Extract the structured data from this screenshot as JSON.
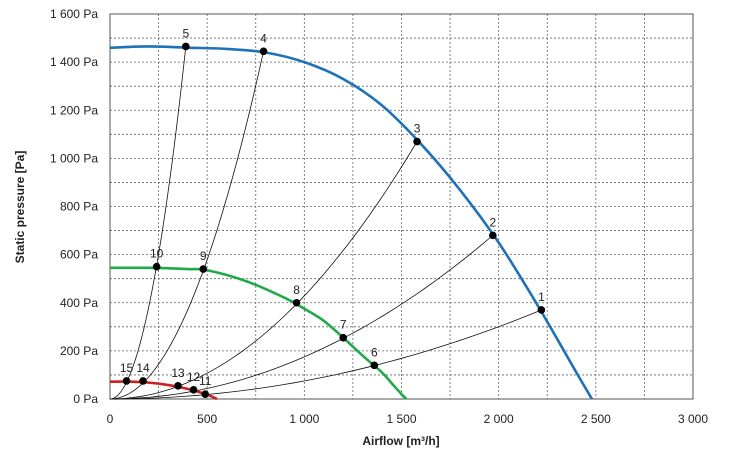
{
  "chart_data": {
    "type": "line",
    "title": "",
    "xlabel": "Airflow [m³/h]",
    "ylabel": "Static pressure [Pa]",
    "xlim": [
      0,
      3000
    ],
    "ylim": [
      0,
      1600
    ],
    "x_ticks": [
      0,
      500,
      1000,
      1500,
      2000,
      2500,
      3000
    ],
    "x_tick_labels": [
      "0",
      "500",
      "1 000",
      "1 500",
      "2 000",
      "2 500",
      "3 000"
    ],
    "y_ticks": [
      0,
      200,
      400,
      600,
      800,
      1000,
      1200,
      1400,
      1600
    ],
    "y_tick_labels": [
      "0 Pa",
      "200 Pa",
      "400 Pa",
      "600 Pa",
      "800 Pa",
      "1 000 Pa",
      "1 200 Pa",
      "1 400 Pa",
      "1 600 Pa"
    ],
    "grid": true,
    "fan_curves": [
      {
        "color": "#1f72b8",
        "points": [
          [
            0,
            1460
          ],
          [
            200,
            1465
          ],
          [
            400,
            1460
          ],
          [
            600,
            1455
          ],
          [
            800,
            1440
          ],
          [
            1000,
            1400
          ],
          [
            1200,
            1330
          ],
          [
            1400,
            1220
          ],
          [
            1600,
            1060
          ],
          [
            1800,
            870
          ],
          [
            2000,
            650
          ],
          [
            2200,
            390
          ],
          [
            2400,
            110
          ],
          [
            2480,
            0
          ]
        ]
      },
      {
        "color": "#1faa4a",
        "points": [
          [
            0,
            545
          ],
          [
            200,
            545
          ],
          [
            400,
            540
          ],
          [
            500,
            535
          ],
          [
            700,
            490
          ],
          [
            900,
            420
          ],
          [
            1000,
            375
          ],
          [
            1100,
            325
          ],
          [
            1200,
            255
          ],
          [
            1300,
            180
          ],
          [
            1400,
            110
          ],
          [
            1450,
            65
          ],
          [
            1500,
            20
          ],
          [
            1525,
            0
          ]
        ]
      },
      {
        "color": "#cc1f1f",
        "points": [
          [
            0,
            72
          ],
          [
            100,
            72
          ],
          [
            200,
            68
          ],
          [
            300,
            58
          ],
          [
            400,
            42
          ],
          [
            500,
            18
          ],
          [
            550,
            0
          ]
        ]
      }
    ],
    "operating_points": [
      {
        "label": "1",
        "x": 2220,
        "y": 370
      },
      {
        "label": "2",
        "x": 1970,
        "y": 680
      },
      {
        "label": "3",
        "x": 1580,
        "y": 1070
      },
      {
        "label": "4",
        "x": 790,
        "y": 1445
      },
      {
        "label": "5",
        "x": 390,
        "y": 1465
      },
      {
        "label": "6",
        "x": 1360,
        "y": 140
      },
      {
        "label": "7",
        "x": 1200,
        "y": 255
      },
      {
        "label": "8",
        "x": 960,
        "y": 400
      },
      {
        "label": "9",
        "x": 480,
        "y": 540
      },
      {
        "label": "10",
        "x": 240,
        "y": 550
      },
      {
        "label": "11",
        "x": 490,
        "y": 20
      },
      {
        "label": "12",
        "x": 430,
        "y": 38
      },
      {
        "label": "13",
        "x": 350,
        "y": 55
      },
      {
        "label": "14",
        "x": 170,
        "y": 75
      },
      {
        "label": "15",
        "x": 85,
        "y": 75
      }
    ],
    "system_curves": [
      {
        "points": [
          [
            0,
            0
          ],
          [
            2220,
            370
          ]
        ]
      },
      {
        "points": [
          [
            0,
            0
          ],
          [
            1970,
            680
          ]
        ]
      },
      {
        "points": [
          [
            0,
            0
          ],
          [
            1580,
            1070
          ]
        ]
      },
      {
        "points": [
          [
            0,
            0
          ],
          [
            790,
            1445
          ]
        ]
      },
      {
        "points": [
          [
            0,
            0
          ],
          [
            390,
            1465
          ]
        ]
      }
    ]
  }
}
